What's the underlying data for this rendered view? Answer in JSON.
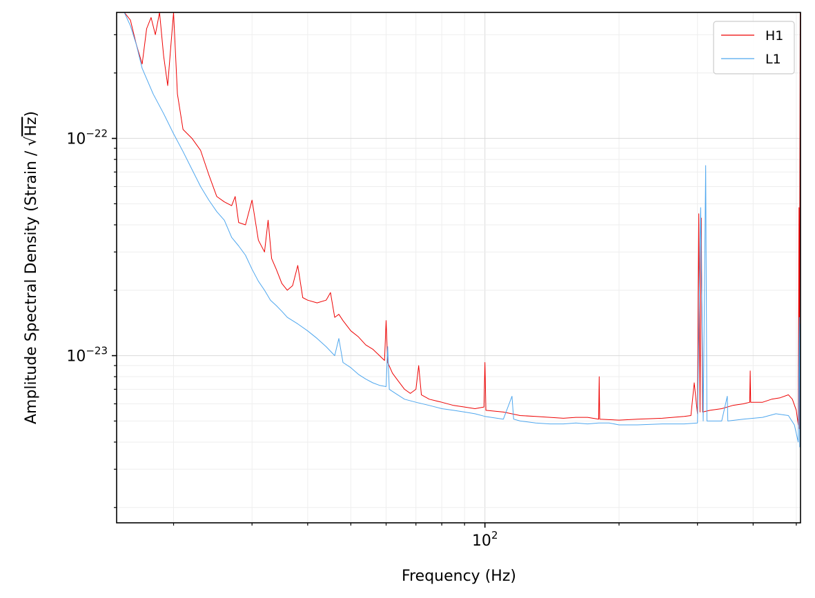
{
  "chart_data": {
    "type": "line",
    "xlabel": "Frequency (Hz)",
    "ylabel_prefix": "Amplitude Spectral Density (Strain / ",
    "ylabel_radical": "√",
    "ylabel_radicand": "Hz",
    "ylabel_suffix": ")",
    "x_scale": "log",
    "y_scale": "log",
    "xlim": [
      14.9,
      511
    ],
    "ylim": [
      1.7e-24,
      3.8e-22
    ],
    "grid": true,
    "legend_position": "top-right",
    "x_major_tick_labels": [
      {
        "value": 100,
        "base": "10",
        "exp": "2"
      }
    ],
    "y_major_tick_labels": [
      {
        "value": 1e-22,
        "base": "10",
        "exp": "−22"
      },
      {
        "value": 1e-23,
        "base": "10",
        "exp": "−23"
      }
    ],
    "series": [
      {
        "name": "H1",
        "color": "#ee0000",
        "points": [
          [
            15.5,
            3.8e-22
          ],
          [
            16,
            3.5e-22
          ],
          [
            16.5,
            2.7e-22
          ],
          [
            17,
            2.2e-22
          ],
          [
            17.4,
            3.2e-22
          ],
          [
            17.8,
            3.6e-22
          ],
          [
            18.2,
            3e-22
          ],
          [
            18.6,
            3.8e-22
          ],
          [
            19,
            2.4e-22
          ],
          [
            19.4,
            1.75e-22
          ],
          [
            19.7,
            2.6e-22
          ],
          [
            20,
            3.8e-22
          ],
          [
            20.4,
            1.6e-22
          ],
          [
            21,
            1.1e-22
          ],
          [
            22,
            1e-22
          ],
          [
            23,
            8.8e-23
          ],
          [
            24,
            6.8e-23
          ],
          [
            25,
            5.4e-23
          ],
          [
            26,
            5.1e-23
          ],
          [
            27,
            4.9e-23
          ],
          [
            27.5,
            5.4e-23
          ],
          [
            28,
            4.1e-23
          ],
          [
            29,
            4e-23
          ],
          [
            30,
            5.2e-23
          ],
          [
            31,
            3.4e-23
          ],
          [
            32,
            3e-23
          ],
          [
            32.6,
            4.2e-23
          ],
          [
            33.2,
            2.8e-23
          ],
          [
            34,
            2.5e-23
          ],
          [
            35,
            2.15e-23
          ],
          [
            36,
            2e-23
          ],
          [
            37,
            2.1e-23
          ],
          [
            38,
            2.6e-23
          ],
          [
            39,
            1.85e-23
          ],
          [
            40,
            1.8e-23
          ],
          [
            42,
            1.75e-23
          ],
          [
            44,
            1.8e-23
          ],
          [
            45,
            1.95e-23
          ],
          [
            46,
            1.5e-23
          ],
          [
            47,
            1.55e-23
          ],
          [
            48,
            1.45e-23
          ],
          [
            50,
            1.3e-23
          ],
          [
            52,
            1.22e-23
          ],
          [
            54,
            1.12e-23
          ],
          [
            56,
            1.07e-23
          ],
          [
            58,
            1e-23
          ],
          [
            59.5,
            9.5e-24
          ],
          [
            60,
            1.45e-23
          ],
          [
            60.5,
            9.3e-24
          ],
          [
            62,
            8.3e-24
          ],
          [
            64,
            7.6e-24
          ],
          [
            66,
            7e-24
          ],
          [
            68,
            6.7e-24
          ],
          [
            70,
            7e-24
          ],
          [
            71,
            9e-24
          ],
          [
            72,
            6.6e-24
          ],
          [
            75,
            6.3e-24
          ],
          [
            80,
            6.1e-24
          ],
          [
            85,
            5.9e-24
          ],
          [
            90,
            5.8e-24
          ],
          [
            95,
            5.7e-24
          ],
          [
            99.5,
            5.8e-24
          ],
          [
            100,
            9.3e-24
          ],
          [
            100.5,
            5.6e-24
          ],
          [
            110,
            5.5e-24
          ],
          [
            120,
            5.3e-24
          ],
          [
            130,
            5.25e-24
          ],
          [
            140,
            5.2e-24
          ],
          [
            150,
            5.15e-24
          ],
          [
            160,
            5.2e-24
          ],
          [
            170,
            5.2e-24
          ],
          [
            180,
            5.1e-24
          ],
          [
            180.5,
            8e-24
          ],
          [
            181,
            5.1e-24
          ],
          [
            200,
            5.05e-24
          ],
          [
            220,
            5.1e-24
          ],
          [
            250,
            5.15e-24
          ],
          [
            280,
            5.25e-24
          ],
          [
            290,
            5.3e-24
          ],
          [
            295,
            7.5e-24
          ],
          [
            300,
            5.4e-24
          ],
          [
            302,
            4.5e-23
          ],
          [
            304,
            5.5e-24
          ],
          [
            306,
            4.3e-23
          ],
          [
            308,
            5.5e-24
          ],
          [
            320,
            5.6e-24
          ],
          [
            340,
            5.7e-24
          ],
          [
            360,
            5.9e-24
          ],
          [
            380,
            6e-24
          ],
          [
            393,
            6.1e-24
          ],
          [
            394,
            8.5e-24
          ],
          [
            395,
            6.1e-24
          ],
          [
            420,
            6.1e-24
          ],
          [
            440,
            6.3e-24
          ],
          [
            460,
            6.4e-24
          ],
          [
            480,
            6.6e-24
          ],
          [
            490,
            6.3e-24
          ],
          [
            500,
            5.6e-24
          ],
          [
            505,
            4.8e-24
          ],
          [
            507,
            4.8e-23
          ],
          [
            508,
            4.6e-24
          ],
          [
            510,
            3.8e-22
          ],
          [
            511,
            6e-24
          ]
        ]
      },
      {
        "name": "L1",
        "color": "#4da6ee",
        "points": [
          [
            15.5,
            3.8e-22
          ],
          [
            16,
            3.3e-22
          ],
          [
            16.5,
            2.7e-22
          ],
          [
            17,
            2.1e-22
          ],
          [
            18,
            1.6e-22
          ],
          [
            19,
            1.3e-22
          ],
          [
            20,
            1.05e-22
          ],
          [
            21,
            8.7e-23
          ],
          [
            22,
            7.2e-23
          ],
          [
            23,
            6e-23
          ],
          [
            24,
            5.2e-23
          ],
          [
            25,
            4.6e-23
          ],
          [
            26,
            4.2e-23
          ],
          [
            27,
            3.5e-23
          ],
          [
            28,
            3.2e-23
          ],
          [
            29,
            2.9e-23
          ],
          [
            30,
            2.5e-23
          ],
          [
            31,
            2.2e-23
          ],
          [
            32,
            2e-23
          ],
          [
            33,
            1.8e-23
          ],
          [
            34,
            1.7e-23
          ],
          [
            35,
            1.6e-23
          ],
          [
            36,
            1.5e-23
          ],
          [
            38,
            1.4e-23
          ],
          [
            40,
            1.3e-23
          ],
          [
            42,
            1.2e-23
          ],
          [
            44,
            1.1e-23
          ],
          [
            46,
            1e-23
          ],
          [
            47,
            1.2e-23
          ],
          [
            48,
            9.3e-24
          ],
          [
            50,
            8.8e-24
          ],
          [
            52,
            8.2e-24
          ],
          [
            54,
            7.8e-24
          ],
          [
            56,
            7.5e-24
          ],
          [
            58,
            7.3e-24
          ],
          [
            60,
            7.2e-24
          ],
          [
            60.5,
            1.1e-23
          ],
          [
            61,
            7e-24
          ],
          [
            63,
            6.7e-24
          ],
          [
            66,
            6.3e-24
          ],
          [
            70,
            6.1e-24
          ],
          [
            75,
            5.9e-24
          ],
          [
            80,
            5.7e-24
          ],
          [
            85,
            5.6e-24
          ],
          [
            90,
            5.5e-24
          ],
          [
            95,
            5.4e-24
          ],
          [
            100,
            5.25e-24
          ],
          [
            110,
            5.1e-24
          ],
          [
            115,
            6.5e-24
          ],
          [
            116,
            5.1e-24
          ],
          [
            120,
            5e-24
          ],
          [
            130,
            4.9e-24
          ],
          [
            140,
            4.85e-24
          ],
          [
            150,
            4.85e-24
          ],
          [
            160,
            4.9e-24
          ],
          [
            170,
            4.85e-24
          ],
          [
            180,
            4.9e-24
          ],
          [
            190,
            4.9e-24
          ],
          [
            200,
            4.8e-24
          ],
          [
            220,
            4.8e-24
          ],
          [
            250,
            4.85e-24
          ],
          [
            280,
            4.85e-24
          ],
          [
            300,
            4.9e-24
          ],
          [
            305,
            4.8e-23
          ],
          [
            307,
            1.7e-23
          ],
          [
            309,
            5e-24
          ],
          [
            313,
            7.5e-23
          ],
          [
            315,
            5e-24
          ],
          [
            340,
            5e-24
          ],
          [
            350,
            6.5e-24
          ],
          [
            351,
            5e-24
          ],
          [
            380,
            5.1e-24
          ],
          [
            420,
            5.2e-24
          ],
          [
            450,
            5.4e-24
          ],
          [
            480,
            5.3e-24
          ],
          [
            495,
            4.8e-24
          ],
          [
            505,
            4e-24
          ],
          [
            508,
            1.5e-23
          ],
          [
            509,
            3.8e-24
          ],
          [
            510,
            1.4e-23
          ],
          [
            511,
            4.2e-24
          ]
        ]
      }
    ]
  }
}
